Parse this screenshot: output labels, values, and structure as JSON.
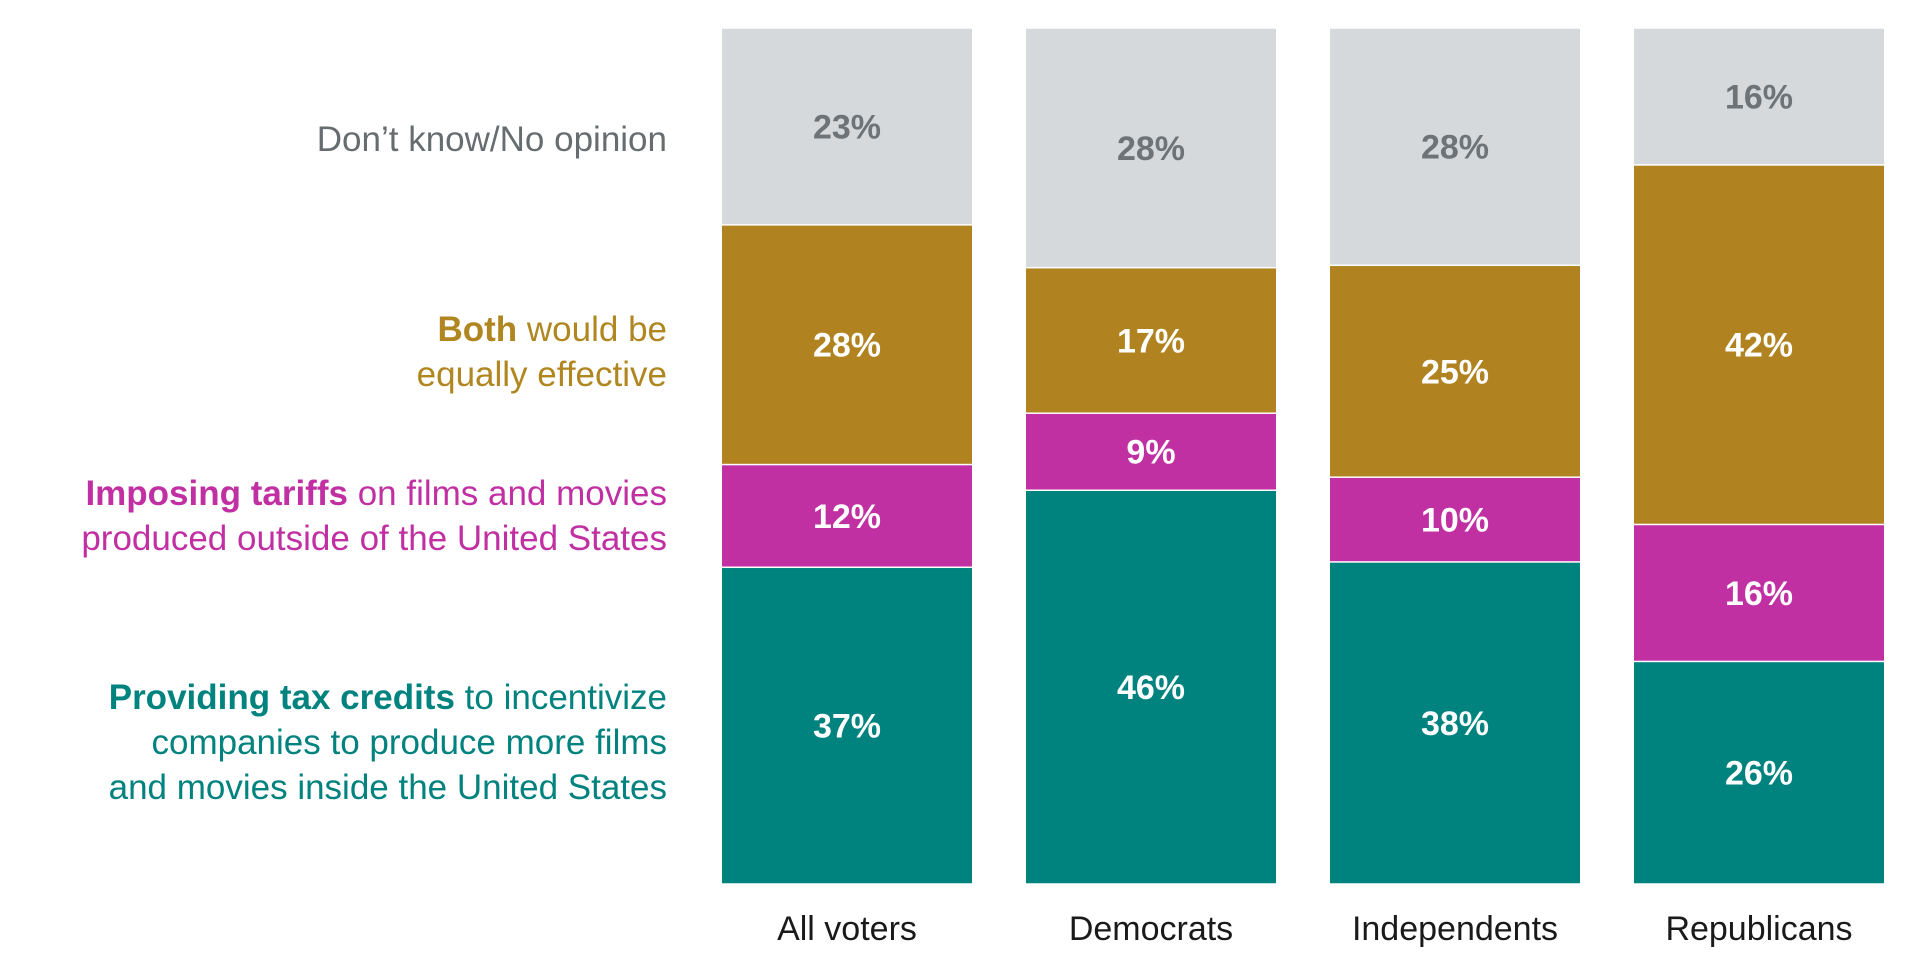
{
  "chart_data": {
    "type": "bar",
    "stacked": true,
    "categories": [
      "All voters",
      "Democrats",
      "Independents",
      "Republicans"
    ],
    "series": [
      {
        "key": "tax",
        "bold": "Providing tax credits",
        "rest_line1": " to incentivize",
        "line2": "companies to produce more films",
        "line3": "and movies inside the United States",
        "color": "#00827f",
        "label_color": "#ffffff",
        "values": [
          37,
          46,
          38,
          26
        ]
      },
      {
        "key": "tariffs",
        "bold": "Imposing tariffs",
        "rest_line1": " on films and movies",
        "line2": "produced outside of the United States",
        "color": "#c130a3",
        "label_color": "#ffffff",
        "values": [
          12,
          9,
          10,
          16
        ]
      },
      {
        "key": "both",
        "bold": "Both",
        "rest_line1": " would be",
        "line2": "equally effective",
        "color": "#b08220",
        "label_color": "#ffffff",
        "values": [
          28,
          17,
          25,
          42
        ]
      },
      {
        "key": "dk",
        "line1": "Don’t know/No opinion",
        "color": "#d6d9db",
        "label_color": "#6e7377",
        "values": [
          23,
          28,
          28,
          16
        ]
      }
    ],
    "value_suffix": "%",
    "ylim": [
      0,
      100
    ],
    "grid": false,
    "legend_position": "left"
  }
}
